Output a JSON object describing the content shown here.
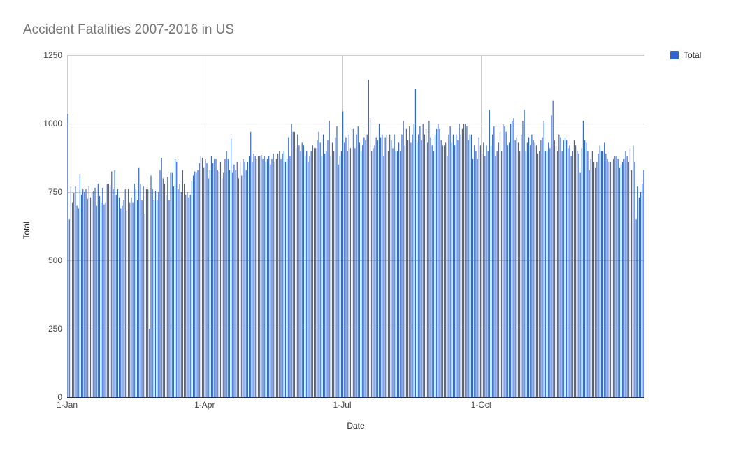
{
  "chart_data": {
    "type": "bar",
    "title": "Accident Fatalities 2007-2016 in US",
    "xlabel": "Date",
    "ylabel": "Total",
    "ylim": [
      0,
      1250
    ],
    "y_ticks": [
      0,
      250,
      500,
      750,
      1000,
      1250
    ],
    "x_ticks": [
      {
        "label": "1-Jan",
        "day": 0
      },
      {
        "label": "1-Apr",
        "day": 91
      },
      {
        "label": "1-Jul",
        "day": 182
      },
      {
        "label": "1-Oct",
        "day": 274
      }
    ],
    "grid": true,
    "legend_position": "top-right",
    "series": [
      {
        "name": "Total",
        "color": "#3366cc",
        "values": [
          1035,
          650,
          770,
          710,
          745,
          770,
          700,
          690,
          815,
          740,
          760,
          750,
          760,
          725,
          770,
          730,
          750,
          755,
          765,
          700,
          780,
          735,
          710,
          765,
          705,
          710,
          780,
          780,
          775,
          825,
          760,
          830,
          740,
          760,
          730,
          690,
          700,
          720,
          760,
          680,
          760,
          710,
          730,
          710,
          780,
          760,
          720,
          840,
          780,
          720,
          770,
          670,
          760,
          760,
          250,
          810,
          760,
          720,
          755,
          720,
          750,
          830,
          875,
          800,
          780,
          740,
          805,
          720,
          820,
          820,
          770,
          870,
          860,
          760,
          780,
          750,
          830,
          780,
          740,
          750,
          730,
          740,
          790,
          810,
          825,
          820,
          830,
          855,
          880,
          875,
          840,
          870,
          855,
          800,
          830,
          880,
          855,
          870,
          870,
          830,
          825,
          860,
          800,
          820,
          870,
          900,
          870,
          830,
          945,
          820,
          850,
          830,
          860,
          800,
          860,
          810,
          870,
          860,
          830,
          860,
          880,
          970,
          860,
          890,
          880,
          870,
          880,
          880,
          885,
          870,
          880,
          860,
          870,
          880,
          850,
          870,
          890,
          860,
          870,
          890,
          900,
          870,
          890,
          900,
          860,
          870,
          950,
          880,
          1000,
          970,
          970,
          910,
          960,
          920,
          900,
          930,
          920,
          880,
          900,
          860,
          880,
          900,
          920,
          910,
          910,
          940,
          970,
          930,
          880,
          960,
          890,
          900,
          940,
          1010,
          880,
          930,
          900,
          950,
          990,
          850,
          880,
          900,
          1045,
          930,
          950,
          900,
          960,
          910,
          980,
          980,
          910,
          960,
          990,
          930,
          900,
          920,
          950,
          940,
          960,
          1160,
          1020,
          900,
          910,
          920,
          950,
          940,
          1000,
          950,
          960,
          880,
          950,
          960,
          900,
          960,
          940,
          910,
          960,
          900,
          900,
          930,
          900,
          960,
          1010,
          920,
          980,
          940,
          990,
          930,
          960,
          1000,
          1125,
          930,
          960,
          990,
          940,
          1000,
          960,
          980,
          930,
          1010,
          950,
          920,
          900,
          960,
          980,
          1000,
          980,
          940,
          920,
          920,
          930,
          880,
          960,
          990,
          930,
          960,
          920,
          960,
          940,
          1000,
          960,
          980,
          1000,
          1000,
          990,
          940,
          960,
          960,
          870,
          920,
          900,
          870,
          950,
          920,
          890,
          930,
          880,
          920,
          900,
          1050,
          920,
          960,
          990,
          880,
          900,
          930,
          970,
          900,
          1000,
          990,
          970,
          920,
          930,
          1000,
          1010,
          1020,
          940,
          950,
          930,
          900,
          960,
          1010,
          1050,
          900,
          930,
          950,
          920,
          960,
          940,
          930,
          920,
          890,
          900,
          940,
          950,
          1010,
          900,
          900,
          930,
          910,
          1030,
          1085,
          940,
          920,
          900,
          960,
          950,
          900,
          940,
          950,
          940,
          910,
          920,
          880,
          900,
          940,
          920,
          900,
          890,
          820,
          910,
          1010,
          940,
          930,
          900,
          830,
          870,
          900,
          860,
          840,
          860,
          890,
          920,
          900,
          900,
          930,
          890,
          870,
          860,
          860,
          860,
          870,
          880,
          880,
          870,
          840,
          850,
          860,
          870,
          900,
          880,
          860,
          910,
          830,
          920,
          860,
          650,
          770,
          730,
          750,
          780,
          830
        ]
      }
    ]
  }
}
